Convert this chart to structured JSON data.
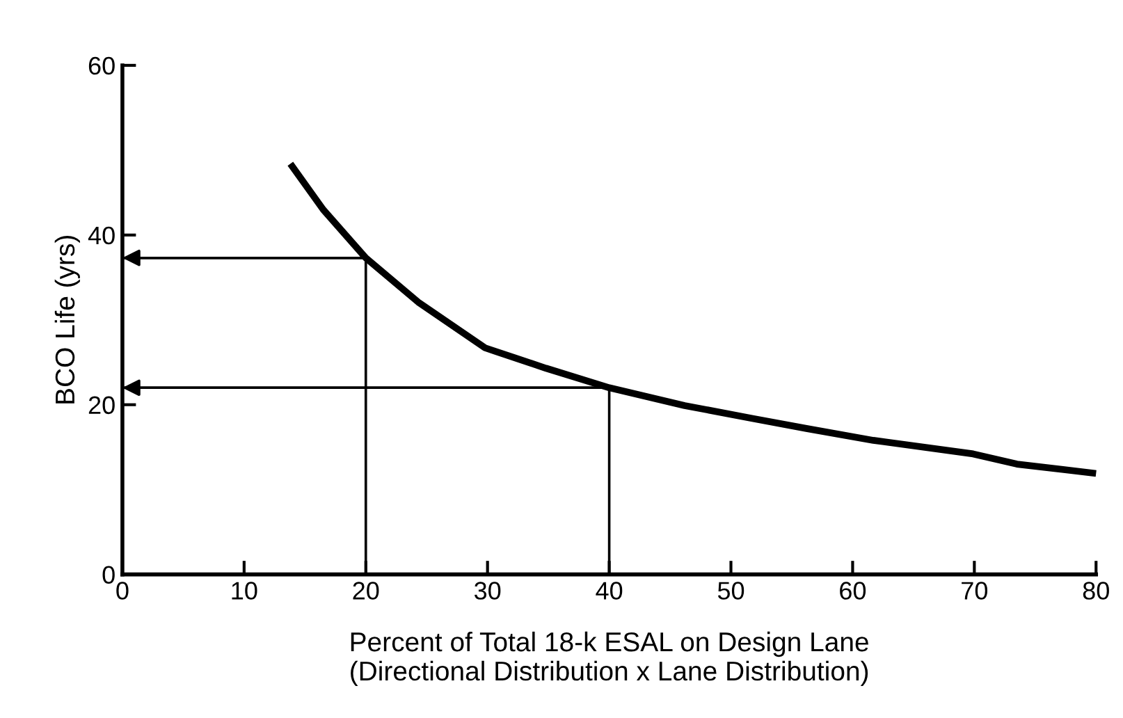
{
  "chart_data": {
    "type": "line",
    "xlabel": "Percent of Total 18-k ESAL on Design Lane\n(Directional Distribution x Lane Distribution)",
    "ylabel": "BCO Life (yrs)",
    "series": [
      {
        "color": "#000000",
        "x": [
          13.8,
          16.5,
          20,
          24.3,
          29.8,
          34.8,
          40,
          46.2,
          51.7,
          56.2,
          61.7,
          69.9,
          73.5,
          80
        ],
        "values": [
          48.4,
          43.0,
          37.3,
          32.1,
          26.7,
          24.3,
          22.0,
          19.9,
          18.4,
          17.2,
          15.8,
          14.2,
          13.0,
          11.9
        ]
      },
      {
        "color": "#000000",
        "x": [
          20,
          20,
          0
        ],
        "values": [
          0,
          37.3,
          37.3
        ]
      },
      {
        "color": "#000000",
        "x": [
          40,
          40,
          0
        ],
        "values": [
          0,
          22.0,
          22.0
        ]
      }
    ],
    "xlim": [
      0,
      80
    ],
    "xticks": [
      0,
      10,
      20,
      30,
      40,
      50,
      60,
      70,
      80
    ],
    "ylim": [
      0,
      60
    ],
    "yticks": [
      0,
      20,
      40,
      60
    ],
    "grid": false,
    "legend": false,
    "marker": "none",
    "line_style": "solid"
  }
}
